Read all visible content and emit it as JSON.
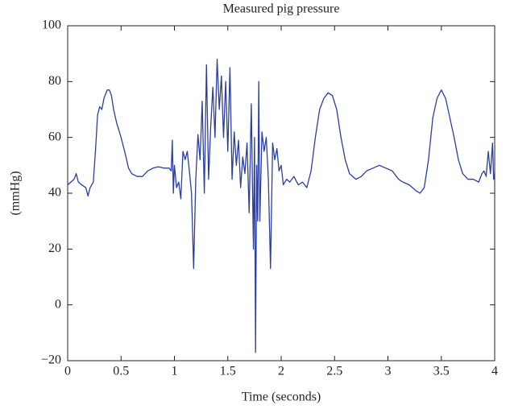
{
  "chart_data": {
    "type": "line",
    "title": "Measured pig pressure",
    "xlabel": "Time (seconds)",
    "ylabel": "(mmHg)",
    "x": [
      0,
      0.03,
      0.06,
      0.08,
      0.1,
      0.13,
      0.17,
      0.19,
      0.21,
      0.24,
      0.26,
      0.28,
      0.3,
      0.32,
      0.34,
      0.37,
      0.39,
      0.41,
      0.43,
      0.46,
      0.5,
      0.54,
      0.57,
      0.6,
      0.65,
      0.7,
      0.75,
      0.8,
      0.85,
      0.9,
      0.95,
      0.97,
      0.98,
      0.99,
      1.0,
      1.02,
      1.04,
      1.06,
      1.08,
      1.1,
      1.12,
      1.14,
      1.16,
      1.18,
      1.2,
      1.22,
      1.24,
      1.26,
      1.28,
      1.3,
      1.32,
      1.34,
      1.36,
      1.38,
      1.4,
      1.42,
      1.44,
      1.46,
      1.48,
      1.5,
      1.52,
      1.54,
      1.56,
      1.58,
      1.6,
      1.62,
      1.64,
      1.66,
      1.68,
      1.7,
      1.72,
      1.74,
      1.75,
      1.76,
      1.77,
      1.78,
      1.79,
      1.8,
      1.82,
      1.84,
      1.86,
      1.88,
      1.9,
      1.92,
      1.94,
      1.96,
      1.98,
      2.0,
      2.02,
      2.05,
      2.08,
      2.12,
      2.16,
      2.2,
      2.24,
      2.28,
      2.32,
      2.36,
      2.4,
      2.44,
      2.48,
      2.52,
      2.56,
      2.6,
      2.64,
      2.7,
      2.75,
      2.8,
      2.86,
      2.92,
      2.98,
      3.04,
      3.1,
      3.14,
      3.2,
      3.26,
      3.3,
      3.34,
      3.38,
      3.42,
      3.46,
      3.5,
      3.54,
      3.58,
      3.62,
      3.66,
      3.7,
      3.75,
      3.8,
      3.85,
      3.88,
      3.9,
      3.92,
      3.94,
      3.96,
      3.98,
      3.99,
      4.0
    ],
    "series": [
      {
        "name": "pressure",
        "color": "#2b3f9a",
        "values": [
          43,
          44,
          45,
          47,
          44,
          43,
          42,
          39,
          42,
          44,
          55,
          68,
          71,
          70,
          74,
          77,
          77,
          75,
          70,
          65,
          60,
          54,
          49,
          47,
          46,
          46,
          48,
          49,
          49.5,
          49,
          49,
          48,
          59,
          40,
          50,
          42,
          44,
          38,
          55,
          52,
          55,
          48,
          40,
          13,
          45,
          61,
          52,
          73,
          40,
          86,
          45,
          64,
          78,
          60,
          88,
          70,
          82,
          60,
          80,
          55,
          85,
          45,
          62,
          50,
          59,
          42,
          53,
          47,
          58,
          33,
          72,
          20,
          60,
          -17,
          50,
          30,
          80,
          30,
          62,
          55,
          60,
          45,
          13,
          58,
          52,
          56,
          48,
          50,
          43,
          45,
          44,
          46,
          43,
          44,
          42,
          48,
          60,
          70,
          74,
          76,
          75,
          70,
          60,
          52,
          47,
          45,
          46,
          48,
          49,
          50,
          49,
          48,
          45,
          44,
          43,
          41,
          40,
          42,
          52,
          67,
          74,
          77,
          74,
          67,
          60,
          52,
          47,
          45,
          45,
          44,
          47,
          48,
          46,
          55,
          47,
          58,
          45,
          47
        ]
      }
    ],
    "xlim": [
      0,
      4
    ],
    "xticks": [
      0,
      0.5,
      1,
      1.5,
      2,
      2.5,
      3,
      3.5,
      4
    ],
    "ylim": [
      -20,
      100
    ],
    "yticks": [
      {
        "value": -20,
        "label": "−20"
      },
      0,
      20,
      40,
      60,
      80,
      100
    ]
  }
}
